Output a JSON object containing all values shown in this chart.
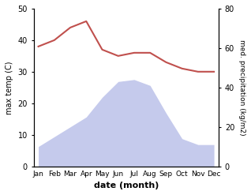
{
  "months": [
    "Jan",
    "Feb",
    "Mar",
    "Apr",
    "May",
    "Jun",
    "Jul",
    "Aug",
    "Sep",
    "Oct",
    "Nov",
    "Dec"
  ],
  "temperature": [
    38,
    40,
    44,
    46,
    37,
    35,
    36,
    36,
    33,
    31,
    30,
    30
  ],
  "precipitation_right": [
    10,
    15,
    20,
    25,
    35,
    43,
    44,
    41,
    27,
    14,
    11,
    11
  ],
  "temp_color": "#c0504d",
  "precip_fill_color": "#c5caec",
  "ylabel_left": "max temp (C)",
  "ylabel_right": "med. precipitation (kg/m2)",
  "xlabel": "date (month)",
  "ylim_left": [
    0,
    50
  ],
  "ylim_right": [
    0,
    80
  ],
  "yticks_left": [
    0,
    10,
    20,
    30,
    40,
    50
  ],
  "yticks_right": [
    0,
    20,
    40,
    60,
    80
  ],
  "figsize": [
    3.18,
    2.47
  ],
  "dpi": 100
}
